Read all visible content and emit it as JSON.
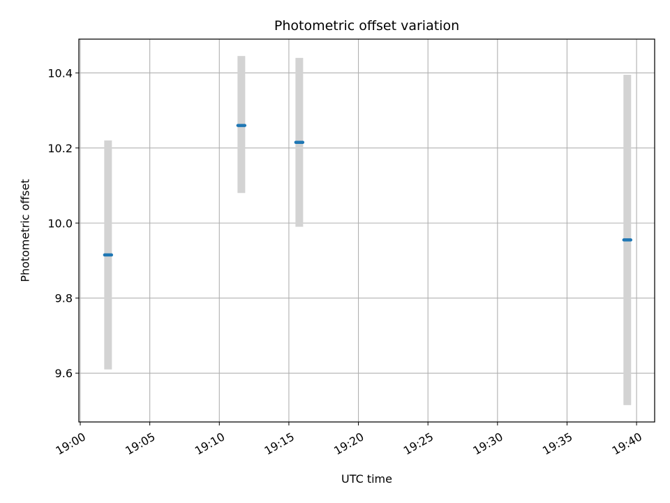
{
  "chart_data": {
    "type": "scatter",
    "title": "Photometric offset variation",
    "xlabel": "UTC time",
    "ylabel": "Photometric offset",
    "x_ticks": [
      "19:00",
      "19:05",
      "19:10",
      "19:15",
      "19:20",
      "19:25",
      "19:30",
      "19:35",
      "19:40"
    ],
    "y_ticks": [
      "9.6",
      "9.8",
      "10.0",
      "10.2",
      "10.4"
    ],
    "xlim": [
      "18:59:54",
      "19:41:18"
    ],
    "ylim": [
      9.47,
      10.49
    ],
    "grid": true,
    "points": [
      {
        "x": [
          "19:01:45",
          "19:02:15"
        ],
        "y": 9.915,
        "err_low": 9.61,
        "err_high": 10.22
      },
      {
        "x": [
          "19:11:20",
          "19:11:50"
        ],
        "y": 10.26,
        "err_low": 10.08,
        "err_high": 10.445
      },
      {
        "x": [
          "19:15:30",
          "19:16:00"
        ],
        "y": 10.215,
        "err_low": 9.99,
        "err_high": 10.44
      },
      {
        "x": [
          "19:39:05",
          "19:39:35"
        ],
        "y": 9.955,
        "err_low": 9.515,
        "err_high": 10.395
      }
    ],
    "colors": {
      "marker": "#1f77b4",
      "errorbar": "#d3d3d3",
      "grid": "#b0b0b0"
    }
  }
}
